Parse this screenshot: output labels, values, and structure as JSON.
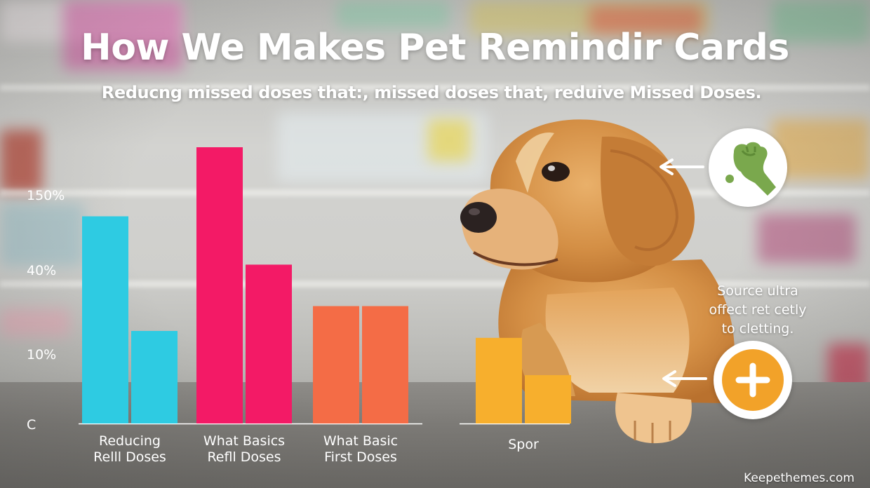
{
  "header": {
    "title": "How We Makes Pet Remindir Cards",
    "subtitle": "Reducng missed doses that:, missed doses that, reduive Missed Doses."
  },
  "chart_data": {
    "type": "bar",
    "y_ticks": [
      "150%",
      "40%",
      "10%",
      "C"
    ],
    "grid": false,
    "groups": [
      {
        "label": [
          "Reducing",
          "Relll Doses"
        ],
        "values": [
          150,
          67
        ],
        "colors": [
          "#2ecbe2",
          "#2ecbe2"
        ]
      },
      {
        "label": [
          "What Basics",
          "Refll Doses"
        ],
        "values": [
          200,
          115
        ],
        "colors": [
          "#f31a66",
          "#f31a66"
        ]
      },
      {
        "label": [
          "What Basic",
          "First Doses"
        ],
        "values": [
          85,
          85
        ],
        "colors": [
          "#f46c46",
          "#f46c46"
        ]
      },
      {
        "label": [
          "Spor"
        ],
        "values": [
          62,
          35
        ],
        "colors": [
          "#f7af2d",
          "#f7af2d"
        ]
      }
    ],
    "ylim": [
      0,
      200
    ]
  },
  "callouts": {
    "top_icon": "raised-fist-icon",
    "bottom_icon": "plus-icon",
    "note": [
      "Source ultra",
      "offect ret cetly",
      "to cletting."
    ],
    "top_icon_color": "#7aa84d",
    "bottom_icon_color": "#f2a229"
  },
  "footer": {
    "credit": "Keepethemes.com"
  }
}
